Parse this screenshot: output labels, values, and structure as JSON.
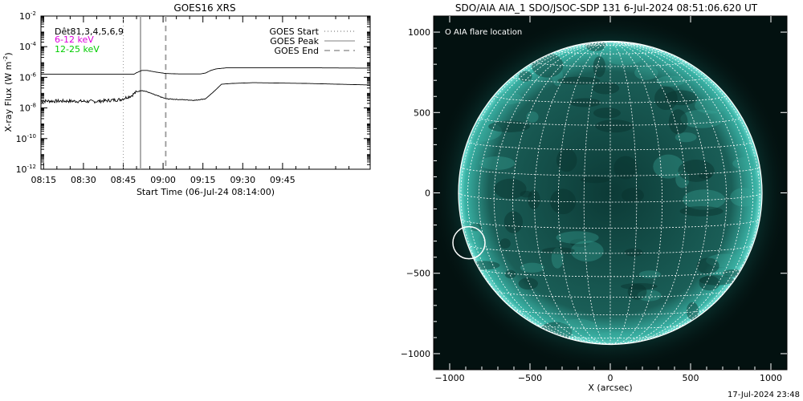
{
  "chart_data": [
    {
      "type": "line",
      "title": "GOES16 XRS",
      "xlabel": "Start Time (06-Jul-24 08:14:00)",
      "ylabel": "X-ray Flux (W m",
      "ylabel_sup": "-2",
      "ylabel_close": ")",
      "y_scale": "log",
      "ylim_exponents": [
        -12,
        -2
      ],
      "y_tick_exponents": [
        -12,
        -10,
        -8,
        -6,
        -4,
        -2
      ],
      "x_ticks": [
        "08:15",
        "08:30",
        "08:45",
        "09:00",
        "09:15",
        "09:30",
        "09:45"
      ],
      "x_range_minutes": [
        0,
        124
      ],
      "channel_legend": [
        {
          "label": "Dêt81,3,4,5,6,9",
          "color": "#000000"
        },
        {
          "label": "6-12 keV",
          "color": "#dd00dd"
        },
        {
          "label": "12-25 keV",
          "color": "#00cc00"
        }
      ],
      "legend": [
        {
          "label": "GOES Start",
          "style": "dotted",
          "color": "#888888"
        },
        {
          "label": "GOES Peak",
          "style": "solid",
          "color": "#888888"
        },
        {
          "label": "GOES End",
          "style": "dashed",
          "color": "#888888"
        }
      ],
      "markers_minutes": {
        "start": 31,
        "peak": 37.5,
        "end": 47
      },
      "series": [
        {
          "x": [
            0,
            10,
            20,
            30,
            35,
            36,
            38,
            40,
            43,
            47,
            52,
            60,
            62,
            64,
            66,
            70,
            80,
            100,
            124
          ],
          "y_log10": [
            -5.8,
            -5.8,
            -5.8,
            -5.8,
            -5.8,
            -5.7,
            -5.55,
            -5.55,
            -5.65,
            -5.75,
            -5.78,
            -5.78,
            -5.72,
            -5.55,
            -5.45,
            -5.38,
            -5.38,
            -5.38,
            -5.4
          ]
        },
        {
          "x": [
            0,
            10,
            20,
            30,
            34,
            36,
            38,
            40,
            43,
            47,
            52,
            58,
            62,
            65,
            68,
            72,
            80,
            100,
            124
          ],
          "y_log10": [
            -7.55,
            -7.55,
            -7.58,
            -7.45,
            -7.2,
            -6.95,
            -6.85,
            -6.95,
            -7.15,
            -7.4,
            -7.45,
            -7.5,
            -7.4,
            -6.95,
            -6.45,
            -6.4,
            -6.35,
            -6.4,
            -6.5
          ]
        }
      ]
    },
    {
      "type": "image",
      "title": "SDO/AIA AIA_1 SDO/JSOC-SDP 131  6-Jul-2024 08:51:06.620 UT",
      "xlabel": "X (arcsec)",
      "ylabel": "",
      "x_ticks": [
        -1000,
        -500,
        0,
        500,
        1000
      ],
      "y_ticks": [
        1000,
        500,
        0,
        -500,
        -1000
      ],
      "xlim": [
        -1100,
        1100
      ],
      "ylim": [
        -1100,
        1100
      ],
      "disk_radius_arcsec": 945,
      "grid_spacing_deg": 10,
      "legend_text": "O AIA flare location",
      "flare_location_arcsec": [
        -880,
        -310
      ]
    }
  ],
  "footer_timestamp": "17-Jul-2024 23:48"
}
